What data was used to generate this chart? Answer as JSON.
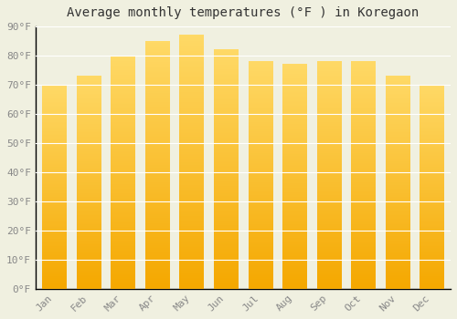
{
  "title": "Average monthly temperatures (°F ) in Koregaon",
  "months": [
    "Jan",
    "Feb",
    "Mar",
    "Apr",
    "May",
    "Jun",
    "Jul",
    "Aug",
    "Sep",
    "Oct",
    "Nov",
    "Dec"
  ],
  "values": [
    70,
    73,
    80,
    85,
    87,
    82,
    78,
    77,
    78,
    78,
    73,
    70
  ],
  "bar_color_bottom": "#F5A800",
  "bar_color_top": "#FFD966",
  "background_color": "#f0f0e0",
  "grid_color": "#ffffff",
  "axis_color": "#000000",
  "tick_color": "#888888",
  "title_color": "#333333",
  "ylim": [
    0,
    90
  ],
  "ytick_step": 10,
  "title_fontsize": 10,
  "tick_fontsize": 8,
  "bar_width": 0.7,
  "bar_gap_color": "#f0f0e0"
}
